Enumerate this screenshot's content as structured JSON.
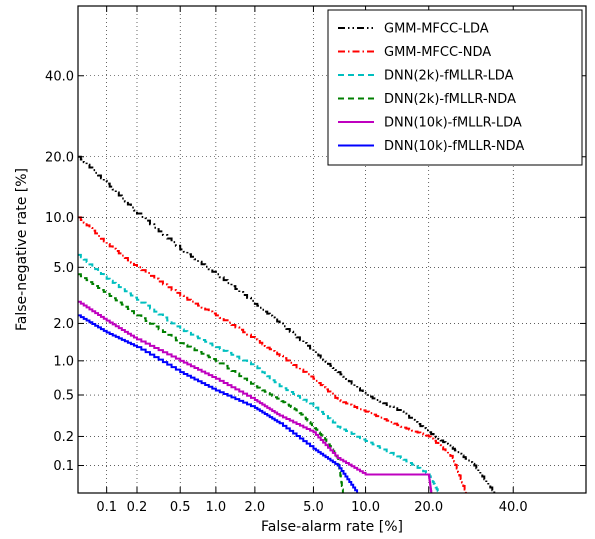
{
  "chart_data": {
    "type": "line",
    "title": "",
    "xlabel": "False-alarm rate [%]",
    "ylabel": "False-negative rate [%]",
    "x_scale": "probit",
    "y_scale": "probit",
    "xlim": [
      0.05,
      60
    ],
    "ylim": [
      0.05,
      60
    ],
    "x_ticks": [
      0.1,
      0.2,
      0.5,
      1.0,
      2.0,
      5.0,
      10.0,
      20.0,
      40.0
    ],
    "x_tick_labels": [
      "0.1",
      "0.2",
      "0.5",
      "1.0",
      "2.0",
      "5.0",
      "10.0",
      "20.0",
      "40.0"
    ],
    "y_ticks": [
      0.1,
      0.2,
      0.5,
      1.0,
      2.0,
      5.0,
      10.0,
      20.0,
      40.0
    ],
    "y_tick_labels": [
      "0.1",
      "0.2",
      "0.5",
      "1.0",
      "2.0",
      "5.0",
      "10.0",
      "20.0",
      "40.0"
    ],
    "grid": true,
    "legend_position": "top-right",
    "series": [
      {
        "name": "GMM-MFCC-LDA",
        "color": "#000000",
        "style": "dashdotdot",
        "points": [
          [
            0.05,
            20.0
          ],
          [
            0.1,
            15.0
          ],
          [
            0.2,
            10.5
          ],
          [
            0.5,
            6.5
          ],
          [
            1.0,
            4.5
          ],
          [
            2.0,
            2.8
          ],
          [
            3.0,
            2.0
          ],
          [
            5.0,
            1.2
          ],
          [
            7.0,
            0.8
          ],
          [
            10.0,
            0.5
          ],
          [
            15.0,
            0.35
          ],
          [
            20.0,
            0.22
          ],
          [
            25.0,
            0.15
          ],
          [
            30.0,
            0.1
          ],
          [
            35.0,
            0.05
          ]
        ]
      },
      {
        "name": "GMM-MFCC-NDA",
        "color": "#ff0000",
        "style": "dashdot",
        "points": [
          [
            0.05,
            10.0
          ],
          [
            0.1,
            7.0
          ],
          [
            0.2,
            5.0
          ],
          [
            0.5,
            3.2
          ],
          [
            1.0,
            2.3
          ],
          [
            2.0,
            1.5
          ],
          [
            3.0,
            1.1
          ],
          [
            5.0,
            0.7
          ],
          [
            7.0,
            0.45
          ],
          [
            10.0,
            0.35
          ],
          [
            15.0,
            0.25
          ],
          [
            20.0,
            0.2
          ],
          [
            25.0,
            0.12
          ],
          [
            28.0,
            0.05
          ]
        ]
      },
      {
        "name": "DNN(2k)-fMLLR-LDA",
        "color": "#00bfbf",
        "style": "dashed",
        "points": [
          [
            0.05,
            6.0
          ],
          [
            0.1,
            4.2
          ],
          [
            0.2,
            3.0
          ],
          [
            0.5,
            1.8
          ],
          [
            1.0,
            1.3
          ],
          [
            2.0,
            0.9
          ],
          [
            3.0,
            0.6
          ],
          [
            5.0,
            0.4
          ],
          [
            7.0,
            0.25
          ],
          [
            10.0,
            0.18
          ],
          [
            15.0,
            0.12
          ],
          [
            20.0,
            0.08
          ],
          [
            22.0,
            0.05
          ]
        ]
      },
      {
        "name": "DNN(2k)-fMLLR-NDA",
        "color": "#007f00",
        "style": "dashed",
        "points": [
          [
            0.05,
            4.5
          ],
          [
            0.1,
            3.3
          ],
          [
            0.2,
            2.3
          ],
          [
            0.5,
            1.4
          ],
          [
            1.0,
            1.0
          ],
          [
            2.0,
            0.6
          ],
          [
            3.0,
            0.45
          ],
          [
            4.0,
            0.35
          ],
          [
            5.0,
            0.25
          ],
          [
            6.0,
            0.18
          ],
          [
            7.0,
            0.12
          ],
          [
            7.5,
            0.05
          ]
        ]
      },
      {
        "name": "DNN(10k)-fMLLR-LDA",
        "color": "#bf00bf",
        "style": "solid",
        "points": [
          [
            0.05,
            2.9
          ],
          [
            0.1,
            2.1
          ],
          [
            0.2,
            1.5
          ],
          [
            0.5,
            1.0
          ],
          [
            1.0,
            0.7
          ],
          [
            2.0,
            0.45
          ],
          [
            3.0,
            0.32
          ],
          [
            5.0,
            0.22
          ],
          [
            7.0,
            0.12
          ],
          [
            10.0,
            0.08
          ],
          [
            20.0,
            0.08
          ],
          [
            20.5,
            0.05
          ]
        ]
      },
      {
        "name": "DNN(10k)-fMLLR-NDA",
        "color": "#0000ff",
        "style": "solid",
        "points": [
          [
            0.05,
            2.3
          ],
          [
            0.1,
            1.7
          ],
          [
            0.2,
            1.3
          ],
          [
            0.5,
            0.8
          ],
          [
            1.0,
            0.55
          ],
          [
            2.0,
            0.38
          ],
          [
            3.0,
            0.27
          ],
          [
            5.0,
            0.15
          ],
          [
            7.0,
            0.1
          ],
          [
            9.0,
            0.05
          ]
        ]
      }
    ]
  }
}
